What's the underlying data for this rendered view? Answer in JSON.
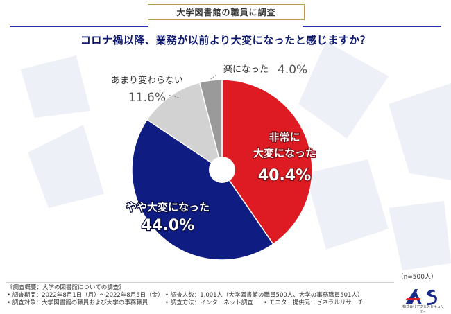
{
  "header": {
    "tag": "大学図書館の職員に調査"
  },
  "question": "コロナ禍以降、業務が以前より大変になったと感じますか？",
  "n_label": "（n=500人）",
  "colors": {
    "red": "#de1b23",
    "blue": "#0f1d83",
    "light_gray": "#d2d2d2",
    "dark_gray": "#9a9a9a",
    "accent_line": "#2a2fb0"
  },
  "chart_data": {
    "type": "pie",
    "title": "コロナ禍以降、業務が以前より大変になったと感じますか？",
    "start": "12 o'clock, clockwise",
    "slices": [
      {
        "label": "非常に大変になった",
        "label_lines": [
          "非常に",
          "大変になった"
        ],
        "value": 40.4,
        "value_text": "40.4%",
        "color": "#de1b23"
      },
      {
        "label": "やや大変になった",
        "label_lines": [
          "やや大変になった"
        ],
        "value": 44.0,
        "value_text": "44.0%",
        "color": "#0f1d83"
      },
      {
        "label": "あまり変わらない",
        "label_lines": [
          "あまり変わらない"
        ],
        "value": 11.6,
        "value_text": "11.6%",
        "color": "#d2d2d2"
      },
      {
        "label": "楽になった",
        "label_lines": [
          "楽になった"
        ],
        "value": 4.0,
        "value_text": "4.0%",
        "color": "#9a9a9a"
      }
    ]
  },
  "footer": {
    "rows": [
      [
        "《調査概要：大学の図書館についての調査》",
        "",
        ""
      ],
      [
        "• 調査期間：2022年8月1日（月）〜2022年8月5日（金）",
        "• 調査人数：1,001人（大学図書館の職員500人、大学の事務職員501人）",
        ""
      ],
      [
        "• 調査対象：大学図書館の職員および大学の事務職員",
        "• 調査方法：インターネット調査",
        "• モニター提供元：ゼネラルリサーチ"
      ]
    ]
  },
  "logo": {
    "mark": "AS",
    "company": "株式会社アクセスセキュリティ"
  }
}
